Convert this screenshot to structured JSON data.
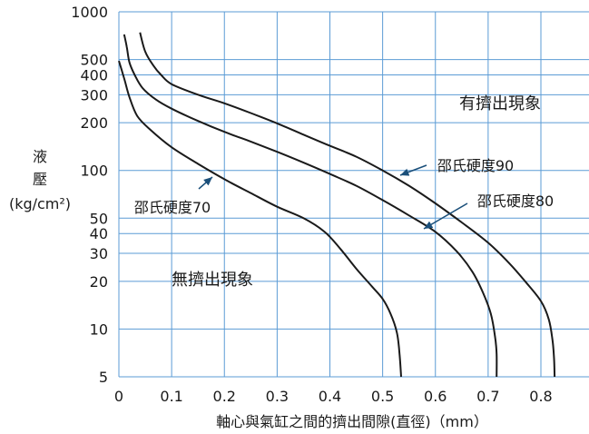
{
  "chart_data": {
    "type": "line",
    "title": "",
    "ylabel_lines": [
      "液",
      "壓"
    ],
    "yunit": "(kg/cm²)",
    "xlabel": "軸心與氣缸之間的擠出間隙(直徑)（mm）",
    "xlim": [
      0,
      0.9
    ],
    "ylim": [
      5,
      1000
    ],
    "yscale": "log",
    "grid": true,
    "x_ticks": [
      0,
      0.1,
      0.2,
      0.3,
      0.4,
      0.5,
      0.6,
      0.7,
      0.8
    ],
    "x_tick_labels": [
      "0",
      "0.1",
      "0.2",
      "0.3",
      "0.4",
      "0.5",
      "0.6",
      "0.7",
      "0.8"
    ],
    "y_ticks": [
      5,
      10,
      20,
      30,
      40,
      50,
      100,
      200,
      300,
      400,
      500,
      1000
    ],
    "y_tick_labels": [
      "5",
      "10",
      "20",
      "30",
      "40",
      "50",
      "100",
      "200",
      "300",
      "400",
      "500",
      "1000"
    ],
    "region_labels": [
      "有擠出現象",
      "無擠出現象"
    ],
    "series": [
      {
        "name": "邵氏硬度70",
        "points": [
          [
            0.0,
            490
          ],
          [
            0.01,
            380
          ],
          [
            0.02,
            290
          ],
          [
            0.035,
            220
          ],
          [
            0.06,
            180
          ],
          [
            0.1,
            140
          ],
          [
            0.15,
            110
          ],
          [
            0.2,
            88
          ],
          [
            0.25,
            72
          ],
          [
            0.3,
            59
          ],
          [
            0.35,
            50
          ],
          [
            0.39,
            41
          ],
          [
            0.42,
            32
          ],
          [
            0.45,
            24
          ],
          [
            0.48,
            18.5
          ],
          [
            0.5,
            15.5
          ],
          [
            0.515,
            12.5
          ],
          [
            0.527,
            9.5
          ],
          [
            0.532,
            7
          ],
          [
            0.535,
            5
          ]
        ]
      },
      {
        "name": "邵氏硬度80",
        "points": [
          [
            0.01,
            720
          ],
          [
            0.015,
            600
          ],
          [
            0.02,
            480
          ],
          [
            0.03,
            400
          ],
          [
            0.045,
            330
          ],
          [
            0.07,
            280
          ],
          [
            0.1,
            245
          ],
          [
            0.15,
            205
          ],
          [
            0.2,
            175
          ],
          [
            0.25,
            152
          ],
          [
            0.3,
            131
          ],
          [
            0.35,
            112
          ],
          [
            0.4,
            95
          ],
          [
            0.45,
            80
          ],
          [
            0.5,
            65
          ],
          [
            0.55,
            52
          ],
          [
            0.6,
            41
          ],
          [
            0.64,
            31
          ],
          [
            0.67,
            23
          ],
          [
            0.69,
            17
          ],
          [
            0.705,
            12.5
          ],
          [
            0.713,
            9
          ],
          [
            0.716,
            7
          ],
          [
            0.716,
            5
          ]
        ]
      },
      {
        "name": "邵氏硬度90",
        "points": [
          [
            0.04,
            740
          ],
          [
            0.05,
            560
          ],
          [
            0.065,
            460
          ],
          [
            0.08,
            400
          ],
          [
            0.1,
            350
          ],
          [
            0.15,
            300
          ],
          [
            0.2,
            265
          ],
          [
            0.25,
            230
          ],
          [
            0.3,
            198
          ],
          [
            0.35,
            168
          ],
          [
            0.4,
            143
          ],
          [
            0.45,
            122
          ],
          [
            0.5,
            100
          ],
          [
            0.55,
            80
          ],
          [
            0.6,
            62
          ],
          [
            0.65,
            47
          ],
          [
            0.7,
            35
          ],
          [
            0.74,
            26
          ],
          [
            0.77,
            20
          ],
          [
            0.8,
            15
          ],
          [
            0.815,
            11.5
          ],
          [
            0.822,
            8.5
          ],
          [
            0.825,
            6.5
          ],
          [
            0.826,
            5
          ]
        ]
      }
    ],
    "annotations": [
      {
        "text": "邵氏硬度90",
        "series": 2,
        "at_x": 0.545
      },
      {
        "text": "邵氏硬度80",
        "series": 1,
        "at_x": 0.6
      },
      {
        "text": "邵氏硬度70",
        "series": 0,
        "at_x": 0.18
      }
    ]
  }
}
